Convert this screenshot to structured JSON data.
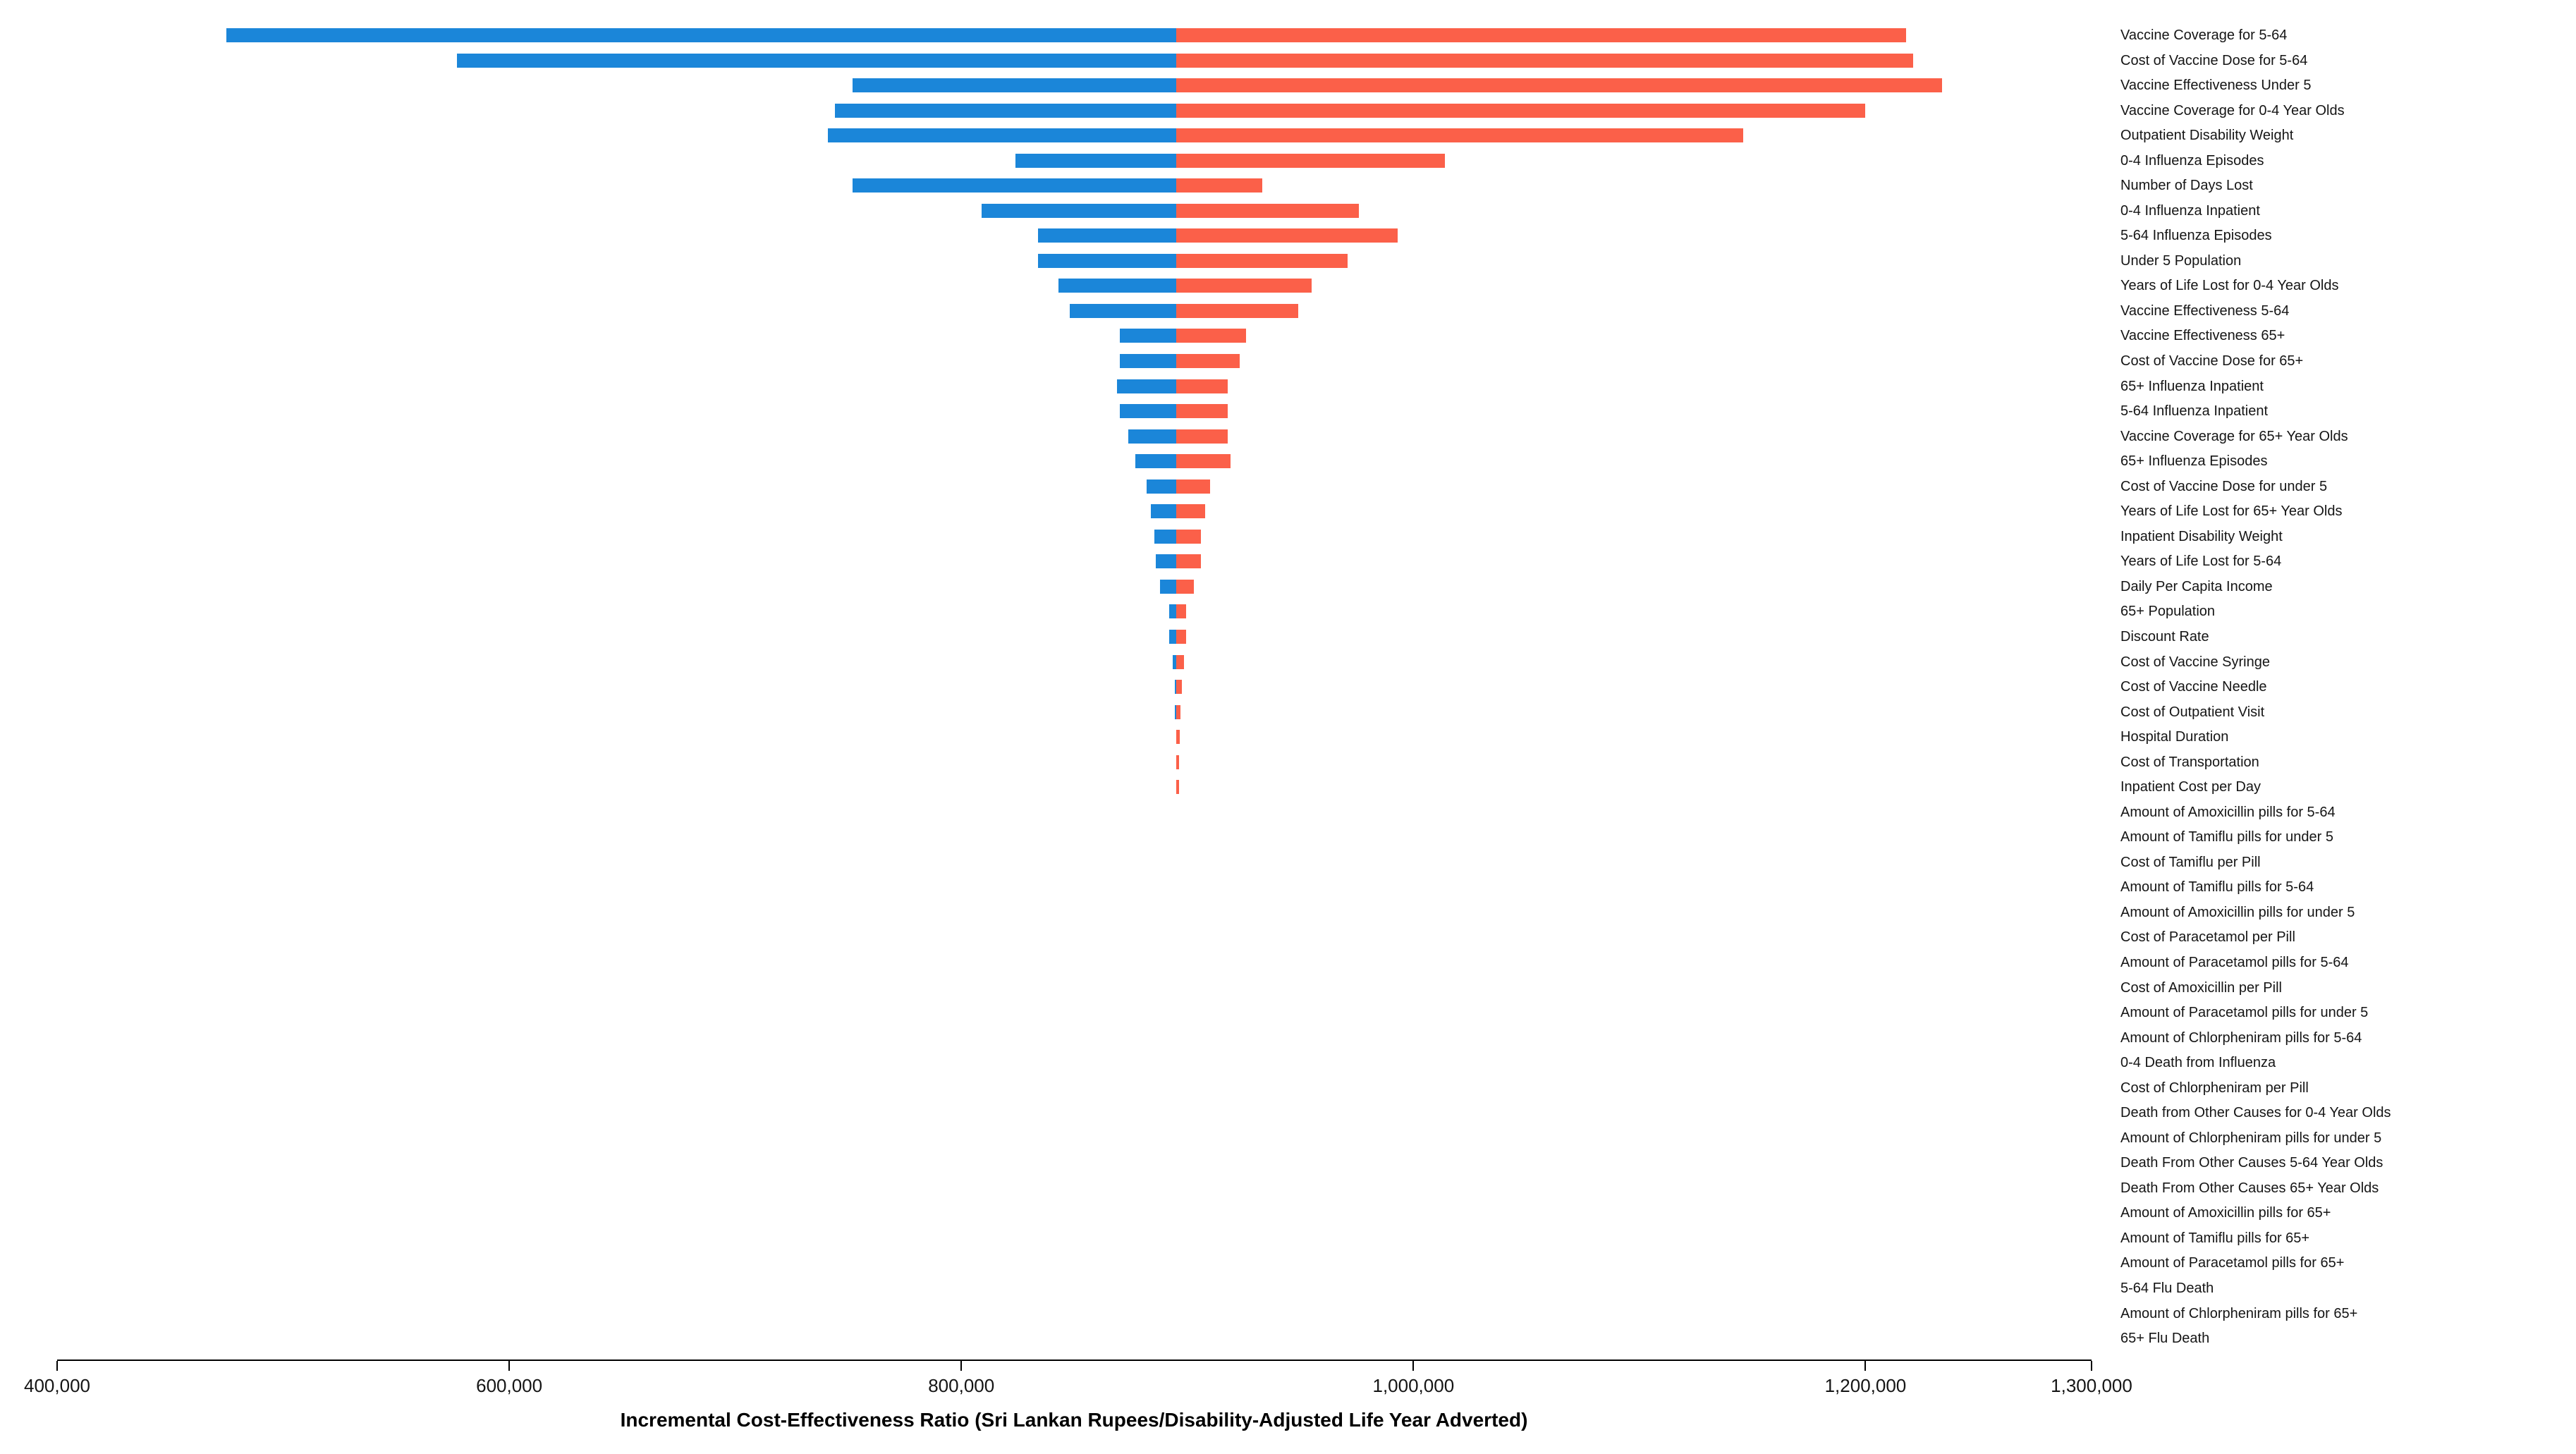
{
  "chart_data": {
    "type": "bar",
    "subtype": "tornado",
    "title": "",
    "xlabel": "Incremental Cost-Effectiveness Ratio (Sri Lankan Rupees/Disability-Adjusted Life Year Adverted)",
    "ylabel": "",
    "baseline_value": 895000,
    "x_axis": {
      "min": 400000,
      "max": 1300000,
      "ticks": [
        {
          "value": 400000,
          "label": "400,000"
        },
        {
          "value": 600000,
          "label": "600,000"
        },
        {
          "value": 800000,
          "label": "800,000"
        },
        {
          "value": 1000000,
          "label": "1,000,000"
        },
        {
          "value": 1200000,
          "label": "1,200,000"
        },
        {
          "value": 1300000,
          "label": "1,300,000"
        }
      ]
    },
    "legend": [],
    "grid": false,
    "colors": {
      "bar_low": "#1b86d9",
      "bar_high": "#fb6049",
      "axis": "#000000",
      "text": "#151515"
    },
    "rows": [
      {
        "label": "Vaccine Coverage for 5-64",
        "low": 475000,
        "high": 1218000
      },
      {
        "label": "Cost of Vaccine Dose for 5-64",
        "low": 577000,
        "high": 1221000
      },
      {
        "label": "Vaccine Effectiveness Under 5",
        "low": 752000,
        "high": 1234000
      },
      {
        "label": "Vaccine Coverage for 0-4 Year Olds",
        "low": 744000,
        "high": 1200000
      },
      {
        "label": "Outpatient Disability Weight",
        "low": 741000,
        "high": 1146000
      },
      {
        "label": "0-4 Influenza Episodes",
        "low": 824000,
        "high": 1014000
      },
      {
        "label": "Number of Days Lost",
        "low": 752000,
        "high": 933000
      },
      {
        "label": "0-4 Influenza Inpatient",
        "low": 809000,
        "high": 976000
      },
      {
        "label": "5-64 Influenza Episodes",
        "low": 834000,
        "high": 993000
      },
      {
        "label": "Under 5 Population",
        "low": 834000,
        "high": 971000
      },
      {
        "label": "Years of Life Lost for 0-4 Year Olds",
        "low": 843000,
        "high": 955000
      },
      {
        "label": "Vaccine Effectiveness 5-64",
        "low": 848000,
        "high": 949000
      },
      {
        "label": "Vaccine Effectiveness 65+",
        "low": 870000,
        "high": 926000
      },
      {
        "label": "Cost of Vaccine Dose for 65+",
        "low": 870000,
        "high": 923000
      },
      {
        "label": "65+ Influenza Inpatient",
        "low": 869000,
        "high": 918000
      },
      {
        "label": "5-64 Influenza Inpatient",
        "low": 870000,
        "high": 918000
      },
      {
        "label": "Vaccine Coverage for 65+ Year Olds",
        "low": 874000,
        "high": 918000
      },
      {
        "label": "65+ Influenza Episodes",
        "low": 877000,
        "high": 919000
      },
      {
        "label": "Cost of Vaccine Dose for under 5",
        "low": 882000,
        "high": 910000
      },
      {
        "label": "Years of Life Lost for 65+ Year Olds",
        "low": 884000,
        "high": 908000
      },
      {
        "label": "Inpatient Disability Weight",
        "low": 885500,
        "high": 906000
      },
      {
        "label": "Years of Life Lost for 5-64",
        "low": 886000,
        "high": 906000
      },
      {
        "label": "Daily Per Capita Income",
        "low": 888000,
        "high": 903000
      },
      {
        "label": "65+ Population",
        "low": 892000,
        "high": 899500
      },
      {
        "label": "Discount Rate",
        "low": 892000,
        "high": 899500
      },
      {
        "label": "Cost of Vaccine Syringe",
        "low": 893500,
        "high": 898500
      },
      {
        "label": "Cost of Vaccine Needle",
        "low": 894300,
        "high": 897500
      },
      {
        "label": "Cost of Outpatient Visit",
        "low": 894500,
        "high": 897000
      },
      {
        "label": "Hospital Duration",
        "low": 894700,
        "high": 896500
      },
      {
        "label": "Cost of Transportation",
        "low": 894700,
        "high": 896300
      },
      {
        "label": "Inpatient Cost per Day",
        "low": 894700,
        "high": 896200
      },
      {
        "label": "Amount of Amoxicillin pills for 5-64",
        "low": 895000,
        "high": 895000
      },
      {
        "label": "Amount of Tamiflu pills for under 5",
        "low": 895000,
        "high": 895000
      },
      {
        "label": "Cost of Tamiflu per Pill",
        "low": 895000,
        "high": 895000
      },
      {
        "label": "Amount of Tamiflu pills for 5-64",
        "low": 895000,
        "high": 895000
      },
      {
        "label": "Amount of Amoxicillin pills for under 5",
        "low": 895000,
        "high": 895000
      },
      {
        "label": "Cost of Paracetamol per Pill",
        "low": 895000,
        "high": 895000
      },
      {
        "label": "Amount of Paracetamol pills for 5-64",
        "low": 895000,
        "high": 895000
      },
      {
        "label": "Cost of Amoxicillin per Pill",
        "low": 895000,
        "high": 895000
      },
      {
        "label": "Amount of Paracetamol pills for under 5",
        "low": 895000,
        "high": 895000
      },
      {
        "label": "Amount of Chlorpheniram pills for 5-64",
        "low": 895000,
        "high": 895000
      },
      {
        "label": "0-4 Death from Influenza",
        "low": 895000,
        "high": 895000
      },
      {
        "label": "Cost of Chlorpheniram per Pill",
        "low": 895000,
        "high": 895000
      },
      {
        "label": "Death from Other Causes for 0-4 Year Olds",
        "low": 895000,
        "high": 895000
      },
      {
        "label": "Amount of Chlorpheniram pills for under 5",
        "low": 895000,
        "high": 895000
      },
      {
        "label": "Death From Other Causes 5-64 Year Olds",
        "low": 895000,
        "high": 895000
      },
      {
        "label": "Death From Other Causes 65+ Year Olds",
        "low": 895000,
        "high": 895000
      },
      {
        "label": "Amount of Amoxicillin pills for 65+",
        "low": 895000,
        "high": 895000
      },
      {
        "label": "Amount of Tamiflu pills for 65+",
        "low": 895000,
        "high": 895000
      },
      {
        "label": "Amount of Paracetamol pills for 65+",
        "low": 895000,
        "high": 895000
      },
      {
        "label": "5-64 Flu Death",
        "low": 895000,
        "high": 895000
      },
      {
        "label": "Amount of Chlorpheniram pills for 65+",
        "low": 895000,
        "high": 895000
      },
      {
        "label": "65+ Flu Death",
        "low": 895000,
        "high": 895000
      }
    ]
  }
}
